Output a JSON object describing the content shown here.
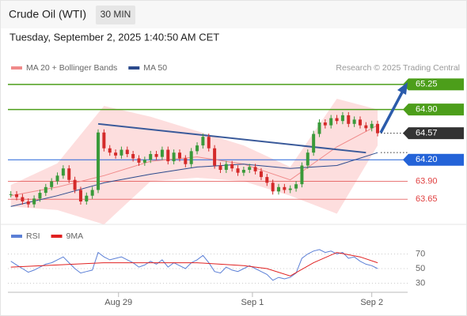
{
  "chart_data": {
    "type": "candlestick",
    "title": "Crude Oil (WTI)",
    "timeframe": "30 MIN",
    "datetime": "Tuesday, September 2, 2025 1:40:50 AM CET",
    "watermark": "Research © 2025 Trading Central",
    "xlim": [
      -0.5,
      66.8
    ],
    "xticks": [
      {
        "value": 18.5,
        "label": "Aug 29"
      },
      {
        "value": 41.5,
        "label": "Sep 1"
      },
      {
        "value": 62,
        "label": "Sep 2"
      }
    ],
    "price": {
      "ylim": [
        63.29,
        65.38
      ],
      "up_color": "#3a9a3a",
      "down_color": "#d42a2a",
      "close": [
        63.72,
        63.68,
        63.62,
        63.58,
        63.66,
        63.74,
        63.82,
        63.9,
        63.98,
        64.08,
        63.92,
        63.78,
        63.62,
        63.7,
        63.78,
        64.58,
        64.36,
        64.3,
        64.26,
        64.34,
        64.28,
        64.22,
        64.16,
        64.2,
        64.28,
        64.24,
        64.34,
        64.18,
        64.3,
        64.22,
        64.14,
        64.32,
        64.4,
        64.52,
        64.36,
        64.12,
        64.06,
        64.14,
        64.08,
        64.02,
        64.06,
        64.1,
        64.04,
        63.96,
        63.88,
        63.76,
        63.82,
        63.78,
        63.8,
        63.86,
        64.12,
        64.3,
        64.56,
        64.72,
        64.68,
        64.78,
        64.74,
        64.82,
        64.7,
        64.76,
        64.68,
        64.64,
        64.7,
        64.57
      ],
      "series": [
        {
          "name": "MA 20 + Bollinger Bands",
          "color": "#f08a8a",
          "band_color": "#fddede",
          "x": [
            0,
            8,
            16,
            24,
            32,
            40,
            48,
            56,
            63
          ],
          "values": [
            63.7,
            63.82,
            63.98,
            64.18,
            64.24,
            64.14,
            63.92,
            64.38,
            64.68
          ],
          "upper": [
            63.85,
            64.15,
            64.95,
            64.8,
            64.6,
            64.4,
            64.1,
            65.05,
            64.9
          ],
          "lower": [
            63.55,
            63.5,
            63.3,
            63.9,
            63.95,
            63.9,
            63.7,
            63.45,
            64.4
          ]
        },
        {
          "name": "MA 50",
          "color": "#2b4a8c",
          "x": [
            0,
            8,
            16,
            24,
            32,
            40,
            48,
            56,
            63
          ],
          "values": [
            63.55,
            63.7,
            63.88,
            64.0,
            64.1,
            64.14,
            64.08,
            64.12,
            64.3
          ]
        }
      ],
      "trendline": {
        "color": "#3a5a9a",
        "x": [
          15,
          61
        ],
        "values": [
          64.7,
          64.3
        ]
      },
      "levels": [
        {
          "value": 65.25,
          "label": "65.25",
          "color": "#4c9e1a",
          "kind": "box"
        },
        {
          "value": 64.9,
          "label": "64.90",
          "color": "#4c9e1a",
          "kind": "box"
        },
        {
          "value": 64.57,
          "label": "64.57",
          "color": "#333333",
          "kind": "current"
        },
        {
          "value": 64.2,
          "label": "64.20",
          "color": "#2463d8",
          "kind": "box"
        },
        {
          "value": 63.9,
          "label": "63.90",
          "color": "#e04040",
          "kind": "text"
        },
        {
          "value": 63.65,
          "label": "63.65",
          "color": "#e04040",
          "kind": "text"
        }
      ]
    },
    "rsi": {
      "ylim": [
        17.6,
        82.4
      ],
      "yticks": [
        30,
        50,
        70
      ],
      "series": [
        {
          "name": "RSI",
          "color": "#5b7fd6",
          "values": [
            60,
            55,
            50,
            45,
            48,
            52,
            56,
            58,
            62,
            66,
            58,
            50,
            44,
            46,
            48,
            72,
            66,
            62,
            64,
            66,
            62,
            58,
            52,
            55,
            60,
            56,
            62,
            52,
            58,
            54,
            50,
            58,
            62,
            68,
            58,
            46,
            44,
            52,
            48,
            46,
            50,
            54,
            50,
            46,
            42,
            34,
            38,
            36,
            38,
            44,
            64,
            70,
            74,
            76,
            72,
            74,
            70,
            72,
            64,
            66,
            60,
            56,
            54,
            50
          ]
        },
        {
          "name": "9MA",
          "color": "#e02020",
          "x": [
            0,
            8,
            16,
            24,
            32,
            40,
            44,
            48,
            52,
            56,
            60,
            63
          ],
          "values": [
            52,
            55,
            58,
            58,
            58,
            54,
            50,
            40,
            58,
            72,
            66,
            58
          ]
        }
      ]
    }
  }
}
